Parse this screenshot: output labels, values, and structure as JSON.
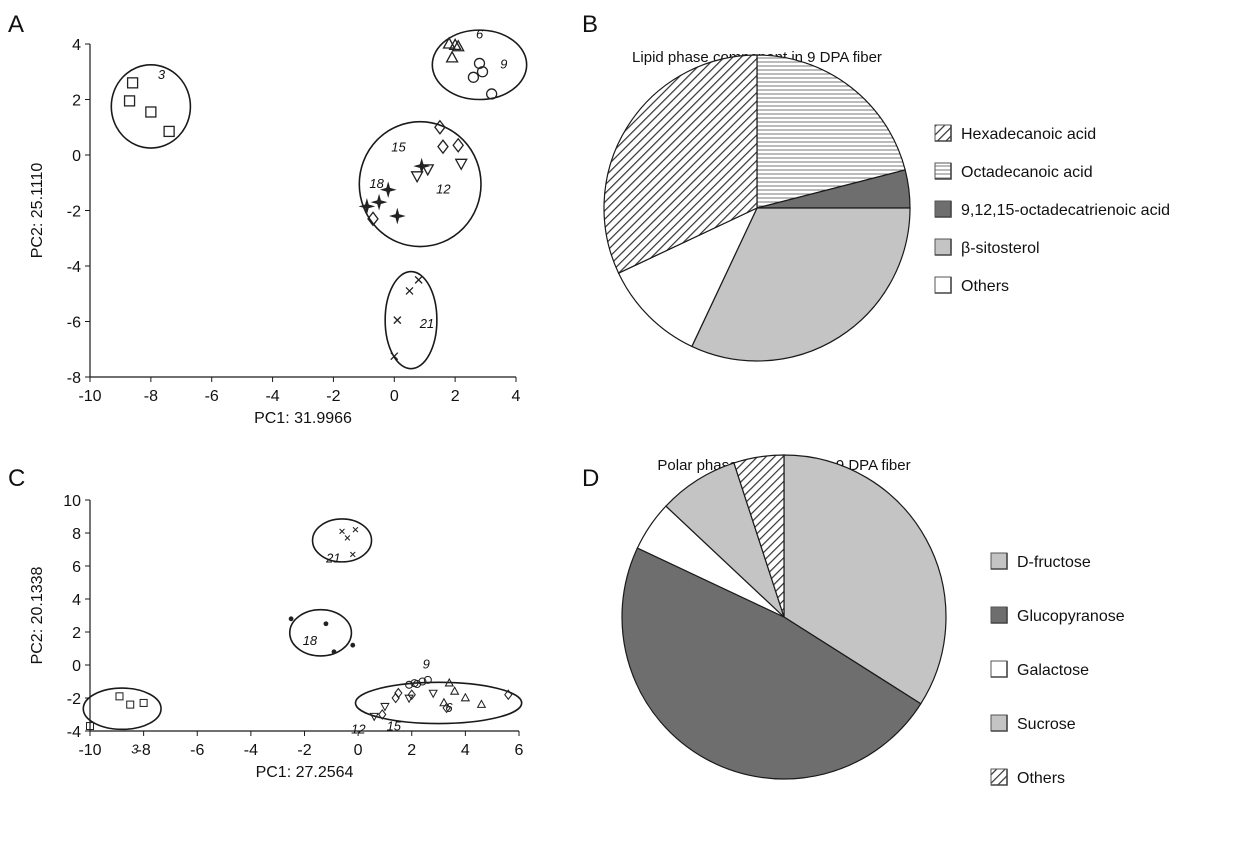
{
  "chart_data": [
    {
      "type": "scatter",
      "panel": "A",
      "xlabel": "PC1: 31.9966",
      "ylabel": "PC2: 25.1110",
      "xlim": [
        -10,
        4
      ],
      "ylim": [
        -8,
        4
      ],
      "xticks": [
        "-10",
        "-8",
        "-6",
        "-4",
        "-2",
        "0",
        "2",
        "4"
      ],
      "yticks": [
        "-8",
        "-6",
        "-4",
        "-2",
        "0",
        "2",
        "4"
      ],
      "groups": [
        {
          "label": "3",
          "marker": "square",
          "points": [
            [
              -8.6,
              2.6
            ],
            [
              -8.7,
              1.95
            ],
            [
              -8.0,
              1.55
            ],
            [
              -7.4,
              0.85
            ]
          ],
          "ellipse": {
            "cx": -8.0,
            "cy": 1.75,
            "rx": 1.3,
            "ry": 1.5
          }
        },
        {
          "label": "6",
          "marker": "triangle-up",
          "points": [
            [
              1.8,
              4.0
            ],
            [
              2.1,
              3.9
            ],
            [
              1.9,
              3.5
            ],
            [
              2.0,
              3.95
            ]
          ],
          "ellipse": {
            "cx": 2.8,
            "cy": 3.25,
            "rx": 1.55,
            "ry": 1.25
          }
        },
        {
          "label": "9",
          "marker": "circle",
          "points": [
            [
              2.8,
              3.3
            ],
            [
              2.9,
              3.0
            ],
            [
              2.6,
              2.8
            ],
            [
              3.2,
              2.2
            ]
          ],
          "ellipse": null
        },
        {
          "label": "15",
          "marker": "diamond",
          "points": [
            [
              1.5,
              1.0
            ],
            [
              1.6,
              0.3
            ],
            [
              2.1,
              0.35
            ],
            [
              -0.7,
              -2.3
            ]
          ],
          "ellipse": {
            "cx": 0.85,
            "cy": -1.05,
            "rx": 2.0,
            "ry": 2.25
          }
        },
        {
          "label": "12",
          "marker": "triangle-down",
          "points": [
            [
              1.1,
              -0.5
            ],
            [
              0.75,
              -0.75
            ],
            [
              2.2,
              -0.3
            ]
          ],
          "ellipse": null
        },
        {
          "label": "18",
          "marker": "star",
          "points": [
            [
              0.9,
              -0.4
            ],
            [
              -0.2,
              -1.25
            ],
            [
              -0.5,
              -1.7
            ],
            [
              -0.9,
              -1.85
            ],
            [
              0.1,
              -2.2
            ]
          ],
          "ellipse": null
        },
        {
          "label": "21",
          "marker": "x",
          "points": [
            [
              0.8,
              -4.5
            ],
            [
              0.5,
              -4.9
            ],
            [
              0.1,
              -5.95
            ],
            [
              0.0,
              -7.25
            ]
          ],
          "ellipse": {
            "cx": 0.55,
            "cy": -5.95,
            "rx": 0.85,
            "ry": 1.75
          }
        }
      ]
    },
    {
      "type": "pie",
      "panel": "B",
      "title": "Lipid phase component in 9 DPA fiber",
      "slices": [
        {
          "label": "Hexadecanoic acid",
          "value": 32,
          "pattern": "diagonal"
        },
        {
          "label": "Octadecanoic acid",
          "value": 21,
          "pattern": "horizontal"
        },
        {
          "label": "9,12,15-octadecatrienoic acid",
          "value": 4,
          "pattern": "dark"
        },
        {
          "label": "β-sitosterol",
          "value": 32,
          "pattern": "light"
        },
        {
          "label": "Others",
          "value": 11,
          "pattern": "white"
        }
      ],
      "legend_position": "right"
    },
    {
      "type": "scatter",
      "panel": "C",
      "xlabel": "PC1: 27.2564",
      "ylabel": "PC2: 20.1338",
      "xlim": [
        -10,
        6
      ],
      "ylim": [
        -4,
        10
      ],
      "xticks": [
        "-10",
        "-8",
        "-6",
        "-4",
        "-2",
        "0",
        "2",
        "4",
        "6"
      ],
      "yticks": [
        "-4",
        "-2",
        "0",
        "2",
        "4",
        "6",
        "8",
        "10"
      ],
      "groups": [
        {
          "label": "21",
          "marker": "x",
          "points": [
            [
              -0.6,
              8.1
            ],
            [
              -0.1,
              8.2
            ],
            [
              -0.4,
              7.7
            ],
            [
              -0.2,
              6.7
            ]
          ],
          "ellipse": {
            "cx": -0.6,
            "cy": 7.55,
            "rx": 1.1,
            "ry": 1.3
          }
        },
        {
          "label": "18",
          "marker": "dot",
          "points": [
            [
              -2.5,
              2.8
            ],
            [
              -1.2,
              2.5
            ],
            [
              -0.2,
              1.2
            ],
            [
              -0.9,
              0.8
            ]
          ],
          "ellipse": {
            "cx": -1.4,
            "cy": 1.95,
            "rx": 1.15,
            "ry": 1.4
          }
        },
        {
          "label": "3",
          "marker": "square",
          "points": [
            [
              -8.9,
              -1.9
            ],
            [
              -8.0,
              -2.3
            ],
            [
              -8.5,
              -2.4
            ],
            [
              -10.0,
              -3.7
            ]
          ],
          "ellipse": {
            "cx": -8.8,
            "cy": -2.65,
            "rx": 1.45,
            "ry": 1.25
          }
        },
        {
          "label": "9",
          "marker": "circle",
          "points": [
            [
              1.9,
              -1.2
            ],
            [
              2.1,
              -1.1
            ],
            [
              2.4,
              -1.0
            ],
            [
              2.6,
              -0.9
            ],
            [
              2.2,
              -1.15
            ]
          ],
          "ellipse": {
            "cx": 3.0,
            "cy": -2.3,
            "rx": 3.1,
            "ry": 1.25
          }
        },
        {
          "label": "6",
          "marker": "triangle-up",
          "points": [
            [
              3.4,
              -1.1
            ],
            [
              3.6,
              -1.6
            ],
            [
              4.0,
              -2.0
            ],
            [
              4.6,
              -2.4
            ],
            [
              3.2,
              -2.3
            ]
          ],
          "ellipse": null
        },
        {
          "label": "15",
          "marker": "diamond",
          "points": [
            [
              1.5,
              -1.7
            ],
            [
              1.4,
              -2.0
            ],
            [
              2.0,
              -1.8
            ],
            [
              3.3,
              -2.6
            ],
            [
              5.6,
              -1.8
            ],
            [
              0.9,
              -3.0
            ]
          ],
          "ellipse": null
        },
        {
          "label": "12",
          "marker": "triangle-down",
          "points": [
            [
              1.0,
              -2.5
            ],
            [
              2.8,
              -1.7
            ],
            [
              1.9,
              -2.0
            ],
            [
              0.6,
              -3.1
            ]
          ],
          "ellipse": null
        }
      ]
    },
    {
      "type": "pie",
      "panel": "D",
      "title": "Polar phase component in 9 DPA fiber",
      "slices": [
        {
          "label": "D-fructose",
          "value": 34,
          "pattern": "light"
        },
        {
          "label": "Glucopyranose",
          "value": 48,
          "pattern": "dark"
        },
        {
          "label": "Galactose",
          "value": 5,
          "pattern": "white"
        },
        {
          "label": "Sucrose",
          "value": 8,
          "pattern": "light"
        },
        {
          "label": "Others",
          "value": 5,
          "pattern": "diagonal"
        }
      ],
      "legend_position": "right"
    }
  ],
  "colors": {
    "dark": "#6e6e6e",
    "light": "#c4c4c4",
    "white": "#ffffff",
    "stroke": "#1a1a1a"
  }
}
